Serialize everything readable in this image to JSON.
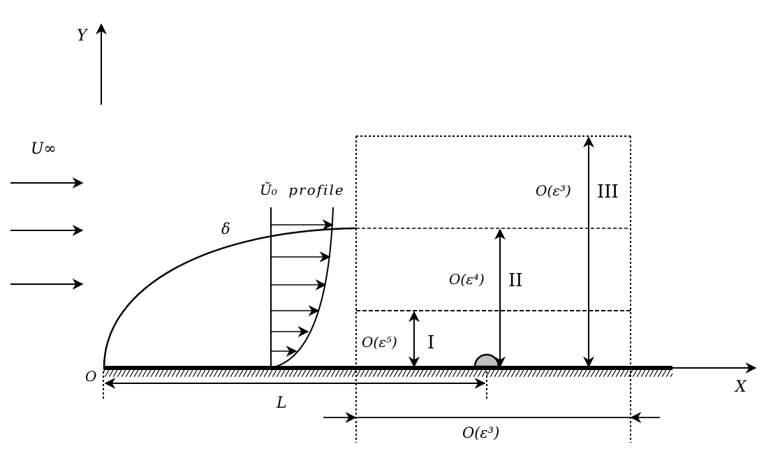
{
  "axes": {
    "x_label": "X",
    "y_label": "Y",
    "origin_label": "O"
  },
  "freestream": {
    "label": "U∞",
    "arrow_count": 3
  },
  "boundary_layer": {
    "label": "δ"
  },
  "profile": {
    "label_symbol": "Ũ₀",
    "label_text": "profile"
  },
  "length": {
    "label": "L"
  },
  "regions": [
    {
      "name": "I",
      "scale": "O(ε⁵)"
    },
    {
      "name": "II",
      "scale": "O(ε⁴)"
    },
    {
      "name": "III",
      "scale": "O(ε³)"
    }
  ],
  "streamwise_extent": {
    "label": "O(ε³)"
  },
  "colors": {
    "line": "#000000",
    "bump": "#c0c0c0"
  }
}
